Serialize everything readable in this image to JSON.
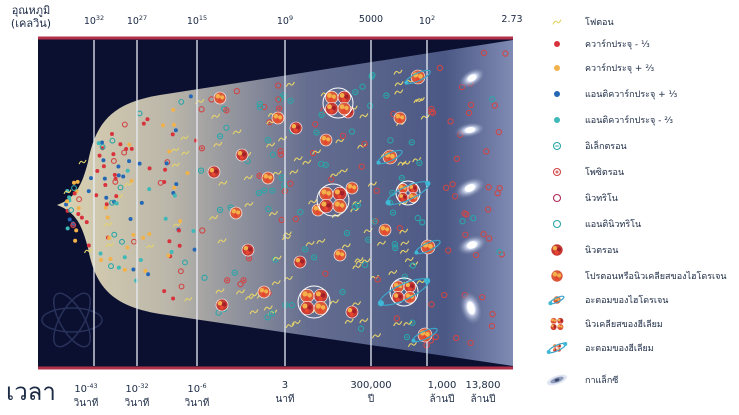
{
  "temperature": {
    "title_line1": "อุณหภูมิ",
    "title_line2": "(เคลวิน)",
    "marks": [
      {
        "base": "10",
        "exp": "32"
      },
      {
        "base": "10",
        "exp": "27"
      },
      {
        "base": "10",
        "exp": "15"
      },
      {
        "base": "10",
        "exp": "9"
      },
      {
        "base": "5000",
        "exp": ""
      },
      {
        "base": "10",
        "exp": "2"
      },
      {
        "base": "2.73",
        "exp": ""
      }
    ]
  },
  "time": {
    "title": "เวลา",
    "marks": [
      {
        "base": "10",
        "exp": "-43",
        "unit": "วินาที"
      },
      {
        "base": "10",
        "exp": "-32",
        "unit": "วินาที"
      },
      {
        "base": "10",
        "exp": "-6",
        "unit": "วินาที"
      },
      {
        "base": "3",
        "exp": "",
        "unit": "นาที"
      },
      {
        "base": "300,000",
        "exp": "",
        "unit": "ปี"
      },
      {
        "base": "1,000",
        "exp": "",
        "unit": "ล้านปี"
      },
      {
        "base": "13,800",
        "exp": "",
        "unit": "ล้านปี"
      }
    ]
  },
  "legend": [
    {
      "icon": "photon-icon",
      "label": "โฟตอน"
    },
    {
      "icon": "quark-minus-third-icon",
      "label": "ควาร์กประจุ - ⅓"
    },
    {
      "icon": "quark-plus-two-thirds-icon",
      "label": "ควาร์กประจุ + ⅔"
    },
    {
      "icon": "antiquark-plus-third-icon",
      "label": "แอนติควาร์กประจุ + ⅓"
    },
    {
      "icon": "antiquark-minus-two-thirds-icon",
      "label": "แอนติควาร์กประจุ - ⅔"
    },
    {
      "icon": "electron-icon",
      "label": "อิเล็กตรอน"
    },
    {
      "icon": "positron-icon",
      "label": "โพซิตรอน"
    },
    {
      "icon": "neutrino-icon",
      "label": "นิวทริโน"
    },
    {
      "icon": "antineutrino-icon",
      "label": "แอนตินิวทริโน"
    },
    {
      "icon": "neutron-icon",
      "label": "นิวตรอน"
    },
    {
      "icon": "proton-hydrogen-nucleus-icon",
      "label": "โปรตอนหรือนิวเคลียสของไฮโดรเจน"
    },
    {
      "icon": "hydrogen-atom-icon",
      "label": "อะตอมของไฮโดรเจน"
    },
    {
      "icon": "helium-nucleus-icon",
      "label": "นิวเคลียสของฮีเลียม"
    },
    {
      "icon": "helium-atom-icon",
      "label": "อะตอมของฮีเลียม"
    },
    {
      "icon": "galaxy-icon",
      "label": "กาแล็กซี"
    }
  ],
  "colors": {
    "panel_dark": "#0b1030",
    "panel_border": "#b3304a",
    "divider": "#e8ecf5",
    "quark_red": "#d8333c",
    "quark_orange": "#f2b24a",
    "antiquark_blue": "#2467b5",
    "antiquark_teal": "#3fb8b8",
    "photon_yellow": "#e6d36a",
    "cone_cream": "#e9dcae"
  }
}
